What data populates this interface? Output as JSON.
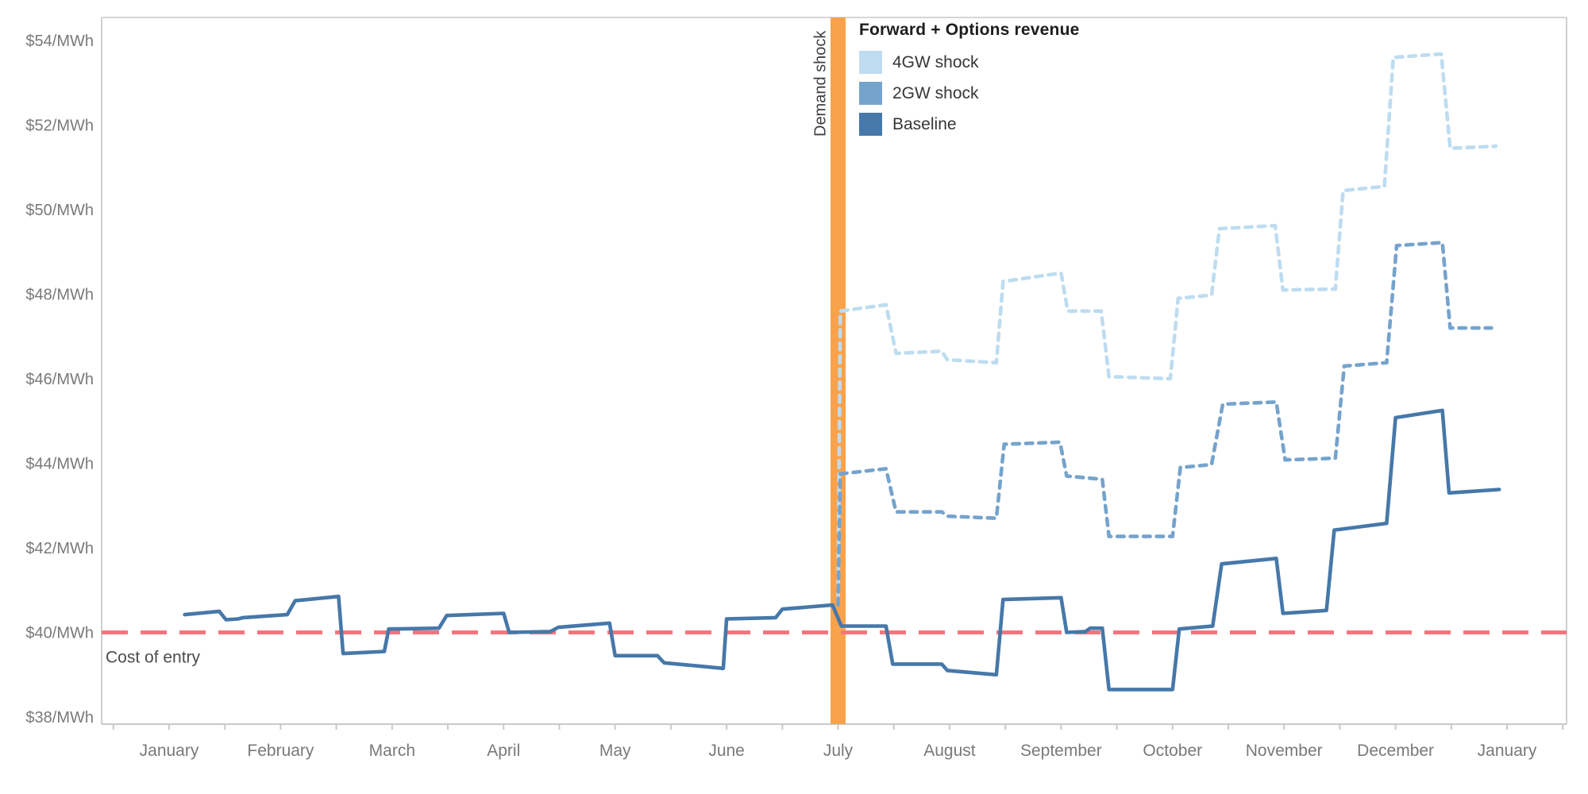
{
  "chart_data": {
    "type": "line",
    "title": "Forward + Options revenue",
    "y_axis": {
      "ticks": [
        {
          "value": 38,
          "label": "$38/MWh"
        },
        {
          "value": 40,
          "label": "$40/MWh"
        },
        {
          "value": 42,
          "label": "$42/MWh"
        },
        {
          "value": 44,
          "label": "$44/MWh"
        },
        {
          "value": 46,
          "label": "$46/MWh"
        },
        {
          "value": 48,
          "label": "$48/MWh"
        },
        {
          "value": 50,
          "label": "$50/MWh"
        },
        {
          "value": 52,
          "label": "$52/MWh"
        },
        {
          "value": 54,
          "label": "$54/MWh"
        }
      ],
      "ylim": [
        37.8,
        54.6
      ],
      "grid": false
    },
    "x_axis": {
      "months": [
        "January",
        "February",
        "March",
        "April",
        "May",
        "June",
        "July",
        "August",
        "September",
        "October",
        "November",
        "December",
        "January"
      ]
    },
    "reference_line": {
      "label": "Cost of entry",
      "value": 40,
      "color": "#f4757d"
    },
    "event_band": {
      "label": "Demand shock",
      "month_index": 6,
      "color": "#f9a24b"
    },
    "legend": {
      "title": "Forward + Options revenue",
      "position": "top-center",
      "items": [
        {
          "label": "4GW shock",
          "color": "#bedcf0"
        },
        {
          "label": "2GW shock",
          "color": "#75a3cc"
        },
        {
          "label": "Baseline",
          "color": "#4678a9"
        }
      ]
    },
    "series": [
      {
        "name": "4GW shock",
        "color": "#bedcf0",
        "dashed": true,
        "start": [
          6.0,
          40.8
        ],
        "steps": [
          [
            6.02,
            6.43,
            47.6,
            47.75
          ],
          [
            6.52,
            6.93,
            46.6,
            46.65
          ],
          [
            6.98,
            7.42,
            46.45,
            46.38
          ],
          [
            7.48,
            8.0,
            48.3,
            48.5
          ],
          [
            8.06,
            8.36,
            47.6,
            47.6
          ],
          [
            8.43,
            8.98,
            46.05,
            46.0
          ],
          [
            9.05,
            9.35,
            47.9,
            47.98
          ],
          [
            9.42,
            9.92,
            49.55,
            49.62
          ],
          [
            9.99,
            10.46,
            48.1,
            48.12
          ],
          [
            10.53,
            10.9,
            50.45,
            50.55
          ],
          [
            10.98,
            11.41,
            53.6,
            53.68
          ],
          [
            11.49,
            11.9,
            51.45,
            51.5
          ]
        ]
      },
      {
        "name": "2GW shock",
        "color": "#75a3cc",
        "dashed": true,
        "start": [
          6.0,
          40.65
        ],
        "steps": [
          [
            6.02,
            6.43,
            43.75,
            43.87
          ],
          [
            6.52,
            6.93,
            42.85,
            42.85
          ],
          [
            6.98,
            7.42,
            42.75,
            42.7
          ],
          [
            7.49,
            7.99,
            44.45,
            44.5
          ],
          [
            8.05,
            8.37,
            43.7,
            43.62
          ],
          [
            8.43,
            9.0,
            42.27,
            42.27
          ],
          [
            9.07,
            9.35,
            43.9,
            43.97
          ],
          [
            9.45,
            9.93,
            45.4,
            45.45
          ],
          [
            10.01,
            10.46,
            44.08,
            44.12
          ],
          [
            10.54,
            10.92,
            46.3,
            46.38
          ],
          [
            11.01,
            11.42,
            49.15,
            49.22
          ],
          [
            11.49,
            11.86,
            47.2,
            47.2
          ]
        ]
      },
      {
        "name": "Baseline",
        "color": "#4678a9",
        "dashed": false,
        "start": null,
        "steps": [
          [
            0.14,
            0.45,
            40.42,
            40.5
          ],
          [
            0.51,
            0.62,
            40.3,
            40.32
          ],
          [
            0.66,
            1.06,
            40.35,
            40.42
          ],
          [
            1.13,
            1.52,
            40.75,
            40.85
          ],
          [
            1.56,
            1.93,
            39.5,
            39.55
          ],
          [
            1.97,
            2.42,
            40.08,
            40.1
          ],
          [
            2.49,
            3.0,
            40.4,
            40.45
          ],
          [
            3.05,
            3.42,
            40.0,
            40.02
          ],
          [
            3.49,
            3.95,
            40.12,
            40.22
          ],
          [
            4.0,
            4.38,
            39.45,
            39.45
          ],
          [
            4.44,
            4.97,
            39.28,
            39.15
          ],
          [
            5.0,
            5.44,
            40.32,
            40.35
          ],
          [
            5.5,
            5.95,
            40.55,
            40.65
          ],
          [
            6.03,
            6.43,
            40.15,
            40.15
          ],
          [
            6.49,
            6.93,
            39.25,
            39.25
          ],
          [
            6.98,
            7.42,
            39.1,
            39.0
          ],
          [
            7.48,
            8.0,
            40.78,
            40.82
          ],
          [
            8.05,
            8.22,
            40.0,
            40.02
          ],
          [
            8.26,
            8.37,
            40.1,
            40.1
          ],
          [
            8.43,
            9.0,
            38.65,
            38.65
          ],
          [
            9.06,
            9.36,
            40.08,
            40.15
          ],
          [
            9.44,
            9.93,
            41.62,
            41.75
          ],
          [
            9.99,
            10.38,
            40.45,
            40.52
          ],
          [
            10.45,
            10.92,
            42.42,
            42.58
          ],
          [
            11.0,
            11.42,
            45.08,
            45.25
          ],
          [
            11.48,
            11.93,
            43.3,
            43.38
          ]
        ]
      }
    ]
  }
}
